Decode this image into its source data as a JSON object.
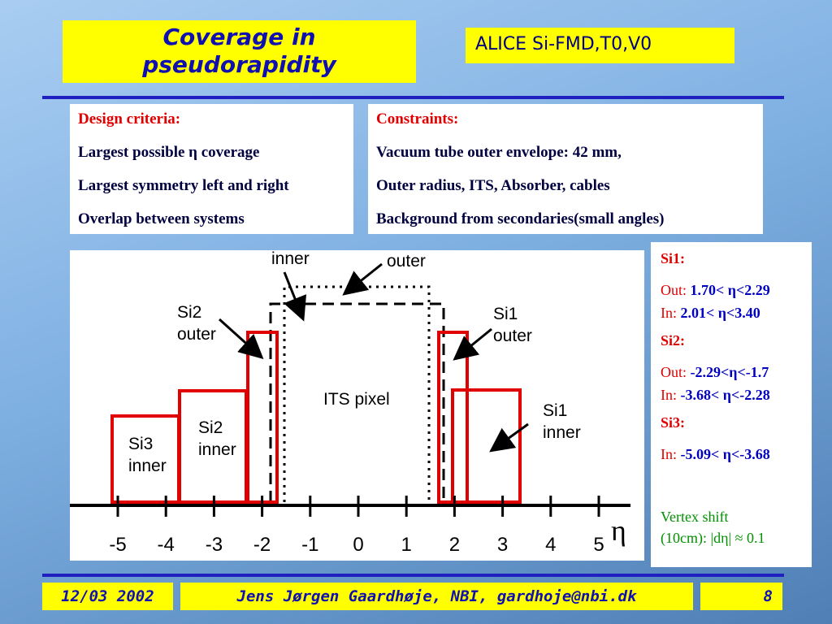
{
  "header": {
    "title": "Coverage in\npseudorapidity",
    "tag": "ALICE Si-FMD,T0,V0"
  },
  "design_criteria": {
    "heading": "Design criteria:",
    "items": [
      "Largest possible η coverage",
      "Largest symmetry left and right",
      "Overlap between systems"
    ]
  },
  "constraints": {
    "heading": "Constraints:",
    "items": [
      "Vacuum tube outer envelope: 42 mm,",
      "Outer radius, ITS, Absorber, cables",
      "Background from secondaries(small angles)"
    ]
  },
  "diagram": {
    "labels": {
      "inner": "inner",
      "outer": "outer",
      "si2_outer": "Si2\nouter",
      "si1_outer": "Si1\nouter",
      "its": "ITS pixel",
      "si2_inner": "Si2\ninner",
      "si3_inner": "Si3\ninner",
      "si1_inner": "Si1\ninner"
    },
    "axis_ticks": [
      "-5",
      "-4",
      "-3",
      "-2",
      "-1",
      "0",
      "1",
      "2",
      "3",
      "4",
      "5"
    ],
    "axis_symbol": "η"
  },
  "notes": {
    "groups": [
      {
        "heading": "Si1:",
        "rows": [
          {
            "label": "Out:",
            "value": "1.70< η<2.29"
          },
          {
            "label": "In:",
            "value": "2.01< η<3.40"
          }
        ]
      },
      {
        "heading": "Si2:",
        "rows": [
          {
            "label": "Out:",
            "value": "-2.29<η<-1.7"
          },
          {
            "label": "In:",
            "value": "-3.68< η<-2.28"
          }
        ]
      },
      {
        "heading": "Si3:",
        "rows": [
          {
            "label": "In:",
            "value": "-5.09< η<-3.68"
          }
        ]
      }
    ],
    "vertex": "Vertex shift\n(10cm):  |dη| ≈ 0.1"
  },
  "footer": {
    "date": "12/03 2002",
    "author": "Jens Jørgen Gaardhøje, NBI, gardhoje@nbi.dk",
    "page": "8"
  }
}
